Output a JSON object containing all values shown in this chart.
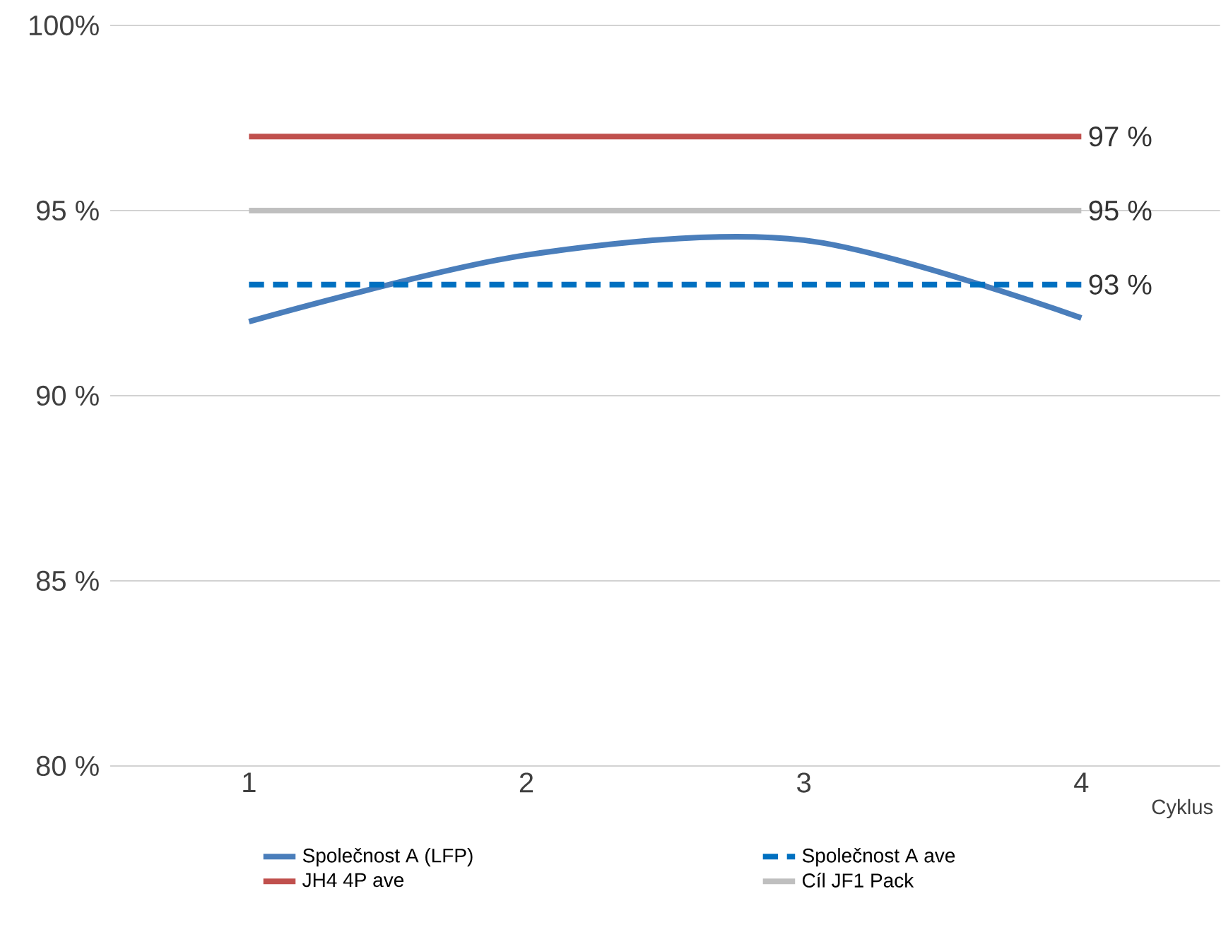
{
  "chart_data": {
    "type": "line",
    "xlabel": "Cyklus",
    "categories": [
      "1",
      "2",
      "3",
      "4"
    ],
    "ylim": [
      80,
      100
    ],
    "yticks": [
      {
        "value": 80,
        "label": "80 %"
      },
      {
        "value": 85,
        "label": "85 %"
      },
      {
        "value": 90,
        "label": "90 %"
      },
      {
        "value": 95,
        "label": "95 %"
      },
      {
        "value": 100,
        "label": "100%"
      }
    ],
    "grid": "y",
    "legend": "bottom",
    "series": [
      {
        "name": "Společnost A (LFP)",
        "color": "#4a7ebb",
        "values": [
          92.0,
          93.8,
          94.2,
          92.1
        ]
      },
      {
        "name": "Společnost A ave",
        "color": "#0070c0",
        "line_style": "dashed",
        "values": [
          93,
          93,
          93,
          93
        ],
        "value_labels": [
          null,
          null,
          null,
          "93 %"
        ]
      },
      {
        "name": "JH4 4P ave",
        "color": "#c0504d",
        "values": [
          97,
          97,
          97,
          97
        ],
        "value_labels": [
          null,
          null,
          null,
          "97 %"
        ]
      },
      {
        "name": "Cíl JF1 Pack",
        "color": "#bfbfbf",
        "values": [
          95,
          95,
          95,
          95
        ],
        "value_labels": [
          null,
          null,
          null,
          "95 %"
        ]
      }
    ]
  }
}
